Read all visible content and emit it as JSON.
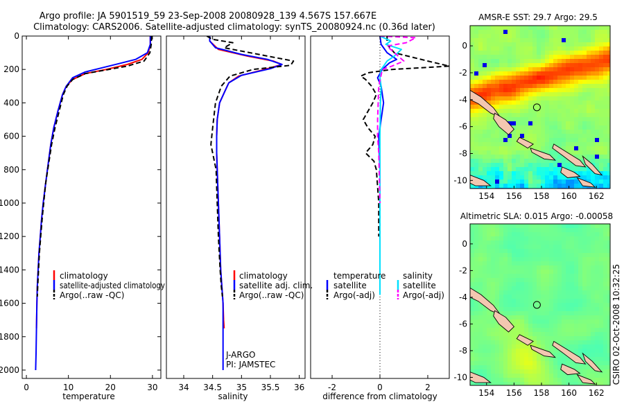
{
  "header": {
    "title_line1": "Argo profile: JA 5901519_59 23-Sep-2008 20080928_139 4.567S 157.667E",
    "title_line2": "Climatology: CARS2006. Satellite-adjusted climatology: synTS_20080924.nc (0.36d later)"
  },
  "side_caption": "CSIRO 02-Oct-2008 10:32:25",
  "colors": {
    "climatology": "#ff0000",
    "satellite": "#0000ff",
    "argo": "#000000",
    "salinity_satellite": "#00e0ff",
    "salinity_argo": "#ff00ff"
  },
  "chart_data": [
    {
      "type": "line",
      "name": "temperature-profile",
      "xlabel": "temperature",
      "ylabel": "",
      "xlim": [
        -1,
        32
      ],
      "ylim": [
        2050,
        0
      ],
      "xticks": [
        0,
        10,
        20,
        30
      ],
      "yticks": [
        0,
        200,
        400,
        600,
        800,
        1000,
        1200,
        1400,
        1600,
        1800,
        2000
      ],
      "legend": [
        "climatology",
        "satellite-adjusted climatology",
        "Argo(..raw -QC)"
      ],
      "legend_position": "lower-right",
      "series": [
        {
          "name": "climatology",
          "color": "#ff0000",
          "dash": "",
          "x": [
            29.5,
            29.5,
            29.0,
            27.5,
            24.0,
            19.0,
            14.0,
            11.0,
            9.5,
            8.6,
            7.5,
            6.5,
            5.8,
            5.0,
            4.5,
            4.0,
            3.6,
            3.3,
            3.0,
            2.8,
            2.6,
            2.5,
            2.4
          ],
          "y": [
            0,
            50,
            100,
            140,
            170,
            200,
            225,
            260,
            300,
            350,
            450,
            550,
            650,
            800,
            900,
            1000,
            1100,
            1200,
            1300,
            1400,
            1500,
            1600,
            1750
          ]
        },
        {
          "name": "satellite-adjusted climatology",
          "color": "#0000ff",
          "dash": "",
          "x": [
            29.5,
            29.5,
            28.8,
            26.0,
            22.0,
            18.0,
            14.0,
            11.0,
            9.5,
            8.6,
            7.5,
            6.5,
            5.8,
            5.0,
            4.5,
            4.0,
            3.6,
            3.3,
            3.0,
            2.8,
            2.6,
            2.5,
            2.4,
            2.3,
            2.2
          ],
          "y": [
            0,
            50,
            100,
            140,
            165,
            190,
            215,
            250,
            300,
            350,
            450,
            550,
            650,
            800,
            900,
            1000,
            1100,
            1200,
            1300,
            1400,
            1500,
            1600,
            1750,
            1900,
            2000
          ]
        },
        {
          "name": "Argo(..raw -QC)",
          "color": "#000000",
          "dash": "7,4",
          "x": [
            29.8,
            29.7,
            29.4,
            28.0,
            24.0,
            18.5,
            14.0,
            11.0,
            9.7,
            8.8,
            7.8,
            6.8,
            6.0,
            5.2,
            4.6,
            4.2,
            3.8,
            3.4,
            3.1,
            2.9,
            2.7,
            2.6
          ],
          "y": [
            0,
            50,
            100,
            150,
            180,
            205,
            225,
            260,
            300,
            350,
            450,
            550,
            650,
            780,
            880,
            980,
            1080,
            1200,
            1300,
            1400,
            1500,
            1560
          ]
        }
      ],
      "annotations": []
    },
    {
      "type": "line",
      "name": "salinity-profile",
      "xlabel": "salinity",
      "ylabel": "",
      "xlim": [
        33.7,
        36.1
      ],
      "ylim": [
        2050,
        0
      ],
      "xticks": [
        34,
        34.5,
        35,
        35.5,
        36
      ],
      "xticklabels": [
        "34",
        "34.5",
        "35",
        "35.5",
        "36"
      ],
      "legend": [
        "climatology",
        "satellite adj. clim.",
        "Argo(..raw -QC)"
      ],
      "legend_position": "lower-right",
      "series": [
        {
          "name": "climatology",
          "color": "#ff0000",
          "dash": "",
          "x": [
            34.45,
            34.45,
            34.6,
            35.1,
            35.55,
            35.7,
            35.4,
            34.95,
            34.78,
            34.7,
            34.62,
            34.58,
            34.57,
            34.57,
            34.58,
            34.6,
            34.62,
            34.64,
            34.66,
            34.68,
            34.69,
            34.7
          ],
          "y": [
            0,
            30,
            80,
            120,
            150,
            170,
            200,
            240,
            280,
            340,
            400,
            500,
            600,
            700,
            800,
            1000,
            1200,
            1400,
            1500,
            1600,
            1700,
            1750
          ]
        },
        {
          "name": "satellite adj. clim.",
          "color": "#0000ff",
          "dash": "",
          "x": [
            34.45,
            34.45,
            34.55,
            35.0,
            35.45,
            35.7,
            35.5,
            35.0,
            34.78,
            34.7,
            34.62,
            34.58,
            34.57,
            34.57,
            34.58,
            34.6,
            34.62,
            34.64,
            34.66,
            34.68,
            34.68,
            34.68
          ],
          "y": [
            0,
            30,
            70,
            110,
            140,
            170,
            195,
            235,
            280,
            340,
            400,
            500,
            600,
            700,
            800,
            1000,
            1200,
            1400,
            1500,
            1600,
            1800,
            2000
          ]
        },
        {
          "name": "Argo(..raw -QC)",
          "color": "#000000",
          "dash": "7,4",
          "x": [
            34.4,
            34.5,
            34.85,
            34.7,
            35.3,
            35.9,
            35.85,
            35.2,
            34.8,
            34.65,
            34.55,
            34.5,
            34.47,
            34.5,
            34.56,
            34.58,
            34.6,
            34.63,
            34.65,
            34.67
          ],
          "y": [
            0,
            20,
            40,
            70,
            110,
            150,
            175,
            200,
            240,
            300,
            400,
            550,
            650,
            700,
            800,
            1000,
            1200,
            1400,
            1500,
            1560
          ]
        }
      ],
      "annotations": [
        "J-ARGO",
        "PI: JAMSTEC"
      ]
    },
    {
      "type": "line",
      "name": "difference-profile",
      "xlabel": "difference from climatology",
      "ylabel": "",
      "xlim": [
        -2.9,
        2.9
      ],
      "ylim": [
        2050,
        0
      ],
      "xticks": [
        -2,
        0,
        2
      ],
      "zero_line": true,
      "legend": [
        "temperature",
        "satellite",
        "Argo(-adj)",
        "salinity",
        "satellite",
        "Argo(-adj)"
      ],
      "legend_position": "lower-center",
      "series": [
        {
          "name": "temperature satellite",
          "color": "#0000ff",
          "dash": "",
          "x": [
            0,
            0.05,
            0.3,
            0.7,
            0.4,
            0.25,
            0.1,
            -0.1,
            0.05,
            0.15,
            0.05,
            -0.05,
            0,
            0
          ],
          "y": [
            0,
            50,
            100,
            140,
            160,
            180,
            200,
            250,
            300,
            400,
            500,
            600,
            800,
            1000
          ]
        },
        {
          "name": "temperature Argo(-adj)",
          "color": "#000000",
          "dash": "7,4",
          "x": [
            0.3,
            0.3,
            0.6,
            2.0,
            2.9,
            0.5,
            -0.5,
            -0.8,
            -0.6,
            -0.35,
            -0.15,
            -0.3,
            -0.7,
            -0.5,
            -0.2,
            -0.3,
            -0.6,
            -0.25,
            -0.15,
            -0.1,
            -0.05,
            -0.05
          ],
          "y": [
            0,
            50,
            100,
            150,
            180,
            200,
            220,
            240,
            260,
            300,
            350,
            400,
            500,
            550,
            600,
            650,
            700,
            750,
            800,
            900,
            1000,
            1200
          ]
        },
        {
          "name": "salinity satellite",
          "color": "#00e0ff",
          "dash": "",
          "x": [
            0,
            0.45,
            0.25,
            0.9,
            0.6,
            0.3,
            0.15,
            0.05,
            0,
            0.05,
            0.02,
            0,
            0,
            0
          ],
          "y": [
            0,
            30,
            50,
            80,
            120,
            150,
            180,
            200,
            250,
            300,
            400,
            600,
            1000,
            1550
          ]
        },
        {
          "name": "salinity Argo(-adj)",
          "color": "#ff00ff",
          "dash": "7,4",
          "x": [
            0,
            1.5,
            1.1,
            0.3,
            0.6,
            1.0,
            0.5,
            0.1,
            -0.05,
            -0.1,
            -0.1,
            -0.05,
            0
          ],
          "y": [
            0,
            10,
            40,
            60,
            100,
            150,
            180,
            200,
            300,
            500,
            600,
            700,
            1000
          ]
        }
      ],
      "annotations": []
    },
    {
      "type": "heatmap",
      "name": "sst-map",
      "title": "AMSR-E SST: 29.7 Argo: 29.5",
      "xticks": [
        154,
        156,
        158,
        160,
        162
      ],
      "yticks": [
        0,
        -2,
        -4,
        -6,
        -8,
        -10
      ],
      "xlim": [
        152.8,
        163.0
      ],
      "ylim": [
        -10.6,
        1.5
      ],
      "marker": [
        157.667,
        -4.567
      ]
    },
    {
      "type": "heatmap",
      "name": "sla-map",
      "title": "Altimetric SLA: 0.015 Argo: -0.00058",
      "xticks": [
        154,
        156,
        158,
        160,
        162
      ],
      "yticks": [
        0,
        -2,
        -4,
        -6,
        -8,
        -10
      ],
      "xlim": [
        152.8,
        163.0
      ],
      "ylim": [
        -10.6,
        1.5
      ],
      "marker": [
        157.667,
        -4.567
      ]
    }
  ]
}
